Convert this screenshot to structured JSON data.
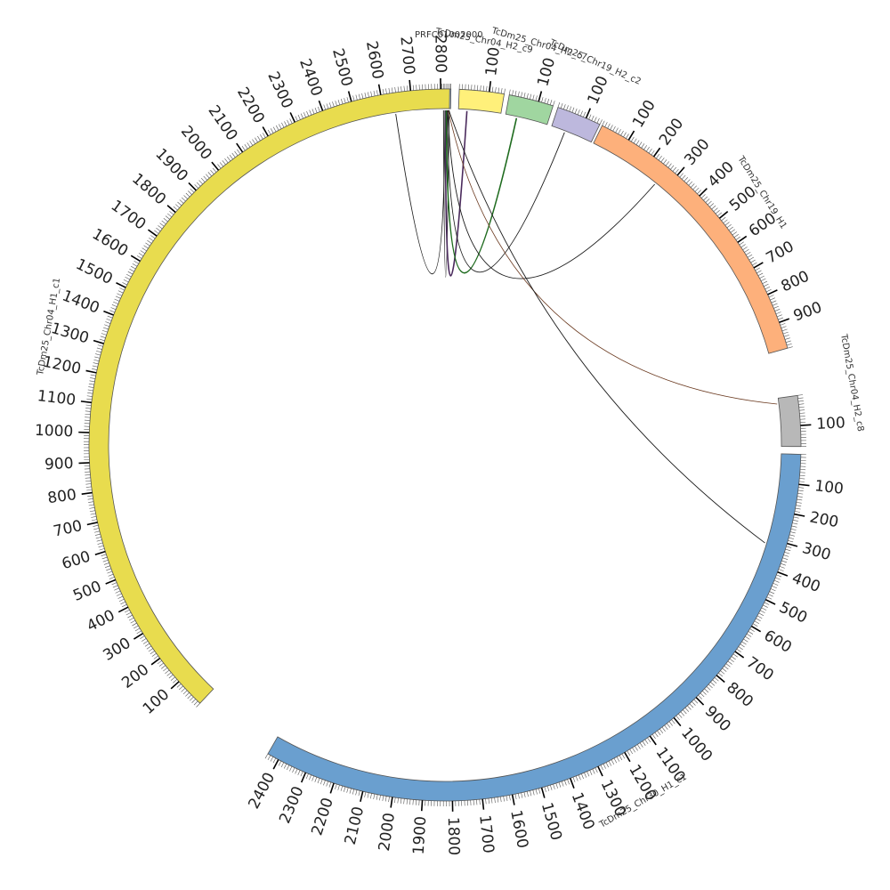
{
  "segments": [
    {
      "id": "prf",
      "name": "PRFC01002000",
      "length": 30,
      "color": "#a6c4e0",
      "ticks": [],
      "name_pos": "top"
    },
    {
      "id": "chr04_h2_c9",
      "name": "TcDm25_Chr04_H2_c9",
      "length": 150,
      "color": "#fff07a",
      "ticks": [
        100
      ],
      "name_pos": "top"
    },
    {
      "id": "chr04_h2_c7",
      "name": "TcDm25_Chr04_H2_c7",
      "length": 150,
      "color": "#a0d6a0",
      "ticks": [
        100
      ],
      "name_pos": "top"
    },
    {
      "id": "chr19_h2_c2",
      "name": "TcDm25_Chr19_H2_c2",
      "length": 150,
      "color": "#bdb8dd",
      "ticks": [
        100
      ],
      "name_pos": "top"
    },
    {
      "id": "chr19_h1",
      "name": "TcDm25_Chr19_H1",
      "length": 990,
      "color": "#fdb07b",
      "ticks": [
        100,
        200,
        300,
        400,
        500,
        600,
        700,
        800,
        900
      ],
      "name_pos": "outer"
    },
    {
      "id": "chr04_h2_c8",
      "name": "TcDm25_Chr04_H2_c8",
      "length": 170,
      "color": "#b8b8b8",
      "ticks": [
        100
      ],
      "name_pos": "outer"
    },
    {
      "id": "chr30_h1_c1",
      "name": "TcDm25_Chr30_H1_c1",
      "length": 2440,
      "color": "#6a9fcf",
      "ticks": [
        100,
        200,
        300,
        400,
        500,
        600,
        700,
        800,
        900,
        1000,
        1100,
        1200,
        1300,
        1400,
        1500,
        1600,
        1700,
        1800,
        1900,
        2000,
        2100,
        2200,
        2300,
        2400
      ],
      "name_pos": "outer"
    },
    {
      "id": "chr04_h1_c1",
      "name": "TcDm25_Chr04_H1_c1",
      "length": 2830,
      "color": "#e8dc4e",
      "ticks": [
        100,
        200,
        300,
        400,
        500,
        600,
        700,
        800,
        900,
        1000,
        1100,
        1200,
        1300,
        1400,
        1500,
        1600,
        1700,
        1800,
        1900,
        2000,
        2100,
        2200,
        2300,
        2400,
        2500,
        2600,
        2700,
        2800
      ],
      "name_pos": "outer"
    }
  ],
  "links": [
    {
      "from": "prf",
      "from_pos": 10,
      "to": "chr04_h1_c1",
      "to_pos": 2640,
      "style": "normal"
    },
    {
      "from": "prf",
      "from_pos": 5,
      "to": "prf",
      "to_pos": 25,
      "style": "normal"
    },
    {
      "from": "prf",
      "from_pos": 12,
      "to": "chr04_h2_c9",
      "to_pos": 30,
      "style": "purple"
    },
    {
      "from": "prf",
      "from_pos": 15,
      "to": "chr04_h2_c7",
      "to_pos": 40,
      "style": "green"
    },
    {
      "from": "prf",
      "from_pos": 18,
      "to": "chr19_h2_c2",
      "to_pos": 50,
      "style": "normal"
    },
    {
      "from": "prf",
      "from_pos": 20,
      "to": "chr19_h1",
      "to_pos": 260,
      "style": "normal"
    },
    {
      "from": "prf",
      "from_pos": 22,
      "to": "chr04_h2_c8",
      "to_pos": 20,
      "style": "brown"
    },
    {
      "from": "prf",
      "from_pos": 24,
      "to": "chr30_h1_c1",
      "to_pos": 320,
      "style": "normal"
    }
  ]
}
